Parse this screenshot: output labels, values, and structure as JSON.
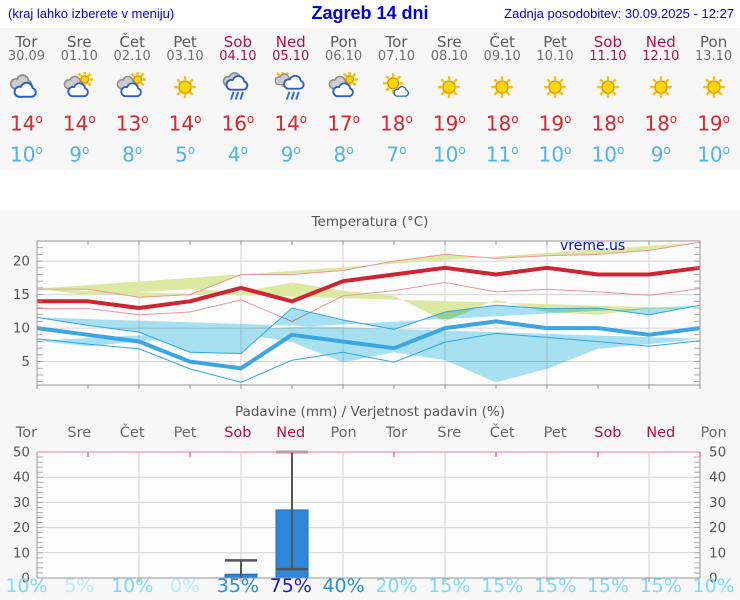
{
  "header": {
    "left": "(kraj lahko izberete v meniju)",
    "title": "Zagreb 14 dni",
    "updated": "Zadnja posodobitev: 30.09.2025 - 12:27"
  },
  "colors": {
    "header_blue": "#0000dd",
    "weekday": "#5a5a5a",
    "weekend": "#b0104c",
    "tmax_text": "#d7282f",
    "tmin_text": "#4db3ea",
    "strip_bg": "#f7f7f7",
    "plot_bg": "#fcfcfc",
    "grid": "#d4d4d4",
    "axis": "#999999",
    "line_max": "#cf2431",
    "band_max_fill": "#dce9a2",
    "band_max_edge": "#e89898",
    "line_min": "#3aa7e2",
    "band_min_fill": "#a9e4f4",
    "band_min_edge": "#2fa8e2",
    "bar_fill": "#2e86d9",
    "bar_edge": "#1f6ab8",
    "whisker": "#555555",
    "precip_top_border": "#f2a9c0",
    "precip_top_tick": "#d43d6e",
    "prob_vlow": "#b9ecfb",
    "prob_low": "#7edbf7",
    "prob_med": "#2b8fd9",
    "prob_high": "#1c1ec0"
  },
  "days": [
    {
      "name": "Tor",
      "date": "30.09",
      "weekend": false,
      "icon": "cloudy",
      "tmax": 14,
      "tmin": 10
    },
    {
      "name": "Sre",
      "date": "01.10",
      "weekend": false,
      "icon": "partly",
      "tmax": 14,
      "tmin": 9
    },
    {
      "name": "Čet",
      "date": "02.10",
      "weekend": false,
      "icon": "partly",
      "tmax": 13,
      "tmin": 8
    },
    {
      "name": "Pet",
      "date": "03.10",
      "weekend": false,
      "icon": "sunny",
      "tmax": 14,
      "tmin": 5
    },
    {
      "name": "Sob",
      "date": "04.10",
      "weekend": true,
      "icon": "rain",
      "tmax": 16,
      "tmin": 4
    },
    {
      "name": "Ned",
      "date": "05.10",
      "weekend": true,
      "icon": "sun-rain",
      "tmax": 14,
      "tmin": 9
    },
    {
      "name": "Pon",
      "date": "06.10",
      "weekend": false,
      "icon": "partly",
      "tmax": 17,
      "tmin": 8
    },
    {
      "name": "Tor",
      "date": "07.10",
      "weekend": false,
      "icon": "mostly-sunny",
      "tmax": 18,
      "tmin": 7
    },
    {
      "name": "Sre",
      "date": "08.10",
      "weekend": false,
      "icon": "sunny",
      "tmax": 19,
      "tmin": 10
    },
    {
      "name": "Čet",
      "date": "09.10",
      "weekend": false,
      "icon": "sunny",
      "tmax": 18,
      "tmin": 11
    },
    {
      "name": "Pet",
      "date": "10.10",
      "weekend": false,
      "icon": "sunny",
      "tmax": 19,
      "tmin": 10
    },
    {
      "name": "Sob",
      "date": "11.10",
      "weekend": true,
      "icon": "sunny",
      "tmax": 18,
      "tmin": 10
    },
    {
      "name": "Ned",
      "date": "12.10",
      "weekend": true,
      "icon": "sunny",
      "tmax": 18,
      "tmin": 9
    },
    {
      "name": "Pon",
      "date": "13.10",
      "weekend": false,
      "icon": "sunny",
      "tmax": 19,
      "tmin": 10
    }
  ],
  "chart_data": [
    {
      "type": "line",
      "title": "Temperatura (°C)",
      "watermark": "vreme.us",
      "categories": [
        "Tor 30.09",
        "Sre 01.10",
        "Čet 02.10",
        "Pet 03.10",
        "Sob 04.10",
        "Ned 05.10",
        "Pon 06.10",
        "Tor 07.10",
        "Sre 08.10",
        "Čet 09.10",
        "Pet 10.10",
        "Sob 11.10",
        "Ned 12.10",
        "Pon 13.10"
      ],
      "ylim": [
        1.5,
        23
      ],
      "yticks": [
        5,
        10,
        15,
        20
      ],
      "grid": true,
      "series": [
        {
          "name": "tmax",
          "values": [
            14,
            14,
            13,
            14,
            16,
            14,
            17,
            18,
            19,
            18,
            19,
            18,
            18,
            19
          ]
        },
        {
          "name": "tmax_band_upper",
          "values": [
            15.8,
            15.8,
            14.6,
            15,
            18,
            18,
            18.6,
            20,
            21,
            20.4,
            20.8,
            21,
            21.6,
            22.8
          ]
        },
        {
          "name": "tmax_band_lower",
          "values": [
            12.9,
            12.9,
            12,
            12.4,
            14.2,
            11,
            14.8,
            15.6,
            16.8,
            15.4,
            15.8,
            15.4,
            14.9,
            15.9
          ]
        },
        {
          "name": "tmin",
          "values": [
            10,
            9,
            8,
            5,
            4,
            9,
            8,
            7,
            10,
            11,
            10,
            10,
            9,
            10
          ]
        },
        {
          "name": "tmin_band_upper",
          "values": [
            11.6,
            10.4,
            9.4,
            6.4,
            6.2,
            13,
            11.2,
            9.8,
            12.4,
            13.4,
            12.9,
            13,
            12,
            13.4
          ]
        },
        {
          "name": "tmin_band_lower",
          "values": [
            8.4,
            7.6,
            6.9,
            3.9,
            1.9,
            5.2,
            6.4,
            4.9,
            7.9,
            9.2,
            8.6,
            8,
            7.3,
            8.1
          ]
        }
      ]
    },
    {
      "type": "bar",
      "title": "Padavine (mm) / Verjetnost padavin (%)",
      "categories": [
        "Tor",
        "Sre",
        "Čet",
        "Pet",
        "Sob",
        "Ned",
        "Pon",
        "Tor",
        "Sre",
        "Čet",
        "Pet",
        "Sob",
        "Ned",
        "Pon"
      ],
      "weekend_flags": [
        false,
        false,
        false,
        false,
        true,
        true,
        false,
        false,
        false,
        false,
        false,
        true,
        true,
        false
      ],
      "precip_mm": [
        0,
        0,
        0,
        0,
        1.5,
        27,
        0,
        0,
        0,
        0,
        0,
        0,
        0,
        0
      ],
      "whiskers": [
        {
          "day_index": 4,
          "low": 0,
          "high": 7
        },
        {
          "day_index": 5,
          "low": 3.5,
          "high": 52
        }
      ],
      "probability_pct": [
        10,
        5,
        10,
        0,
        35,
        75,
        40,
        20,
        15,
        15,
        15,
        15,
        15,
        10
      ],
      "ylim": [
        0,
        50
      ],
      "yticks": [
        0,
        10,
        20,
        30,
        40,
        50
      ],
      "grid": true
    }
  ]
}
